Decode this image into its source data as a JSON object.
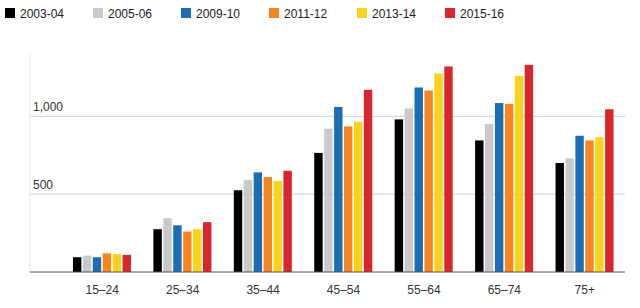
{
  "chart_data": {
    "type": "bar",
    "categories": [
      "15–24",
      "25–34",
      "35–44",
      "45–54",
      "55–64",
      "65–74",
      "75+"
    ],
    "series": [
      {
        "name": "2003-04",
        "color": "#000000",
        "values": [
          95,
          275,
          525,
          765,
          980,
          845,
          700
        ]
      },
      {
        "name": "2005-06",
        "color": "#c9c9c9",
        "values": [
          105,
          345,
          590,
          920,
          1050,
          950,
          730
        ]
      },
      {
        "name": "2009-10",
        "color": "#1b6eb5",
        "values": [
          95,
          300,
          640,
          1060,
          1185,
          1085,
          875
        ]
      },
      {
        "name": "2011-12",
        "color": "#f6861f",
        "values": [
          120,
          260,
          610,
          935,
          1165,
          1080,
          845
        ]
      },
      {
        "name": "2013-14",
        "color": "#f9d31b",
        "values": [
          115,
          275,
          585,
          965,
          1275,
          1260,
          865
        ]
      },
      {
        "name": "2015-16",
        "color": "#d8262c",
        "values": [
          110,
          320,
          650,
          1170,
          1320,
          1330,
          1045
        ]
      }
    ],
    "ylim": [
      0,
      1400
    ],
    "yticks": [
      500,
      {
        "value": 1000,
        "label": "1,000"
      }
    ],
    "grid": true,
    "legend": "top"
  }
}
